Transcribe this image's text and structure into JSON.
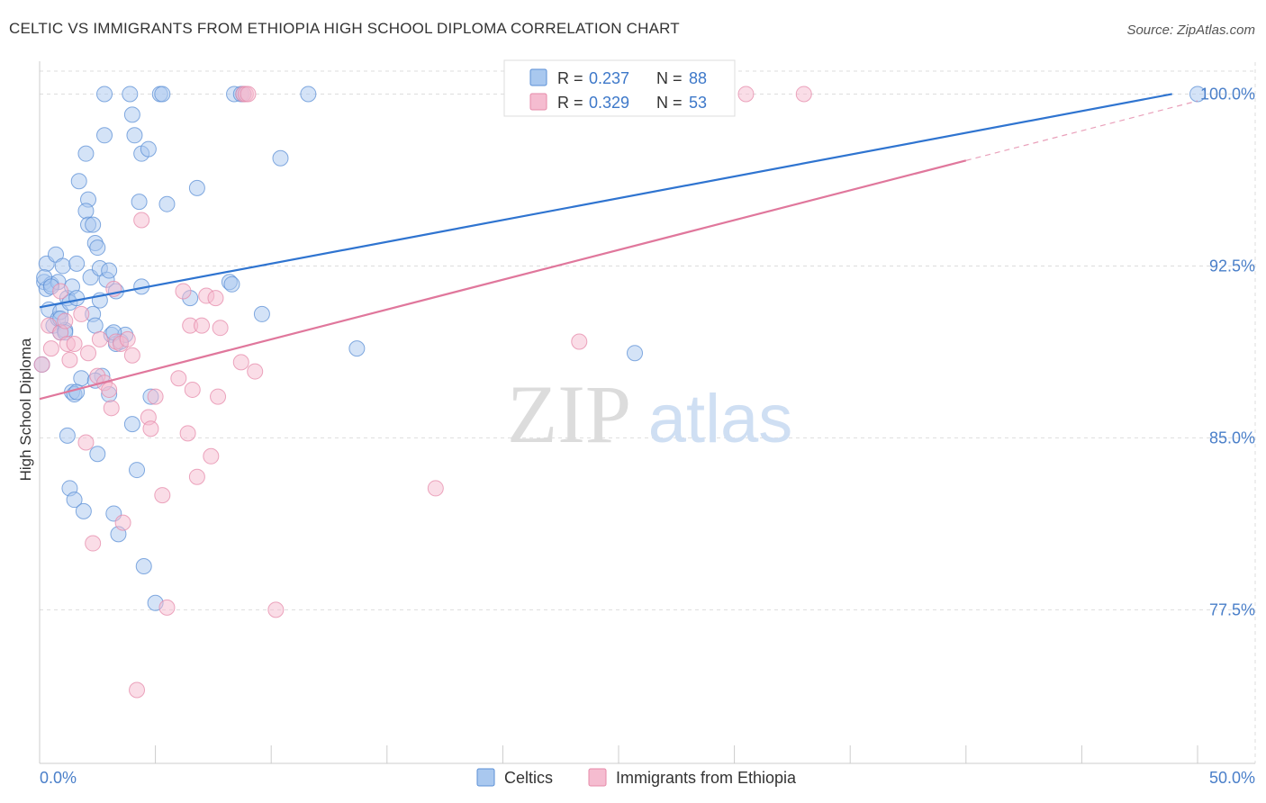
{
  "header": {
    "title": "CELTIC VS IMMIGRANTS FROM ETHIOPIA HIGH SCHOOL DIPLOMA CORRELATION CHART",
    "source": "Source: ZipAtlas.com"
  },
  "watermark": {
    "zip": "ZIP",
    "atlas": "atlas"
  },
  "colors": {
    "blue_fill": "#a9c8ef",
    "blue_stroke": "#5b8fd6",
    "blue_line": "#2f74d0",
    "pink_fill": "#f5bcd0",
    "pink_stroke": "#e68aa9",
    "pink_line": "#e0779c",
    "axis_label": "#4a7fc9",
    "grid": "#dddddd"
  },
  "chart_data": {
    "type": "scatter",
    "title": "CELTIC VS IMMIGRANTS FROM ETHIOPIA HIGH SCHOOL DIPLOMA CORRELATION CHART",
    "xlabel": "",
    "ylabel": "High School Diploma",
    "xlim": [
      0,
      50
    ],
    "ylim": [
      70.8,
      101.0
    ],
    "x_tick_labels": [
      {
        "value": 0,
        "label": "0.0%"
      },
      {
        "value": 50,
        "label": "50.0%"
      }
    ],
    "x_minor_ticks": [
      0,
      5,
      10,
      15,
      20,
      25,
      30,
      35,
      40,
      45,
      50
    ],
    "y_ticks": [
      {
        "value": 77.5,
        "label": "77.5%"
      },
      {
        "value": 85.0,
        "label": "85.0%"
      },
      {
        "value": 92.5,
        "label": "92.5%"
      },
      {
        "value": 100.0,
        "label": "100.0%"
      }
    ],
    "legend": [
      {
        "name": "Celtics",
        "r_label": "R =",
        "r_value": "0.237",
        "n_label": "N =",
        "n_value": "88"
      },
      {
        "name": "Immigrants from Ethiopia",
        "r_label": "R =",
        "r_value": "0.329",
        "n_label": "N =",
        "n_value": "53"
      }
    ],
    "series": [
      {
        "name": "Celtics",
        "trend": {
          "x0": 0,
          "y0": 90.7,
          "x1": 48.9,
          "y1": 100.0
        },
        "points": [
          [
            0.1,
            88.2
          ],
          [
            0.2,
            91.8
          ],
          [
            0.3,
            92.6
          ],
          [
            0.3,
            91.5
          ],
          [
            0.4,
            90.6
          ],
          [
            0.5,
            91.7
          ],
          [
            0.6,
            89.9
          ],
          [
            0.7,
            93.0
          ],
          [
            0.8,
            91.8
          ],
          [
            0.8,
            90.2
          ],
          [
            0.9,
            90.5
          ],
          [
            0.9,
            89.6
          ],
          [
            1.0,
            92.5
          ],
          [
            1.1,
            89.7
          ],
          [
            1.2,
            91.1
          ],
          [
            1.3,
            90.9
          ],
          [
            1.4,
            91.6
          ],
          [
            1.2,
            85.1
          ],
          [
            1.3,
            82.8
          ],
          [
            1.4,
            87.0
          ],
          [
            1.5,
            86.9
          ],
          [
            1.6,
            91.1
          ],
          [
            1.6,
            92.6
          ],
          [
            1.5,
            82.3
          ],
          [
            1.7,
            96.2
          ],
          [
            1.8,
            87.6
          ],
          [
            1.9,
            81.8
          ],
          [
            2.0,
            97.4
          ],
          [
            2.1,
            95.4
          ],
          [
            2.0,
            94.9
          ],
          [
            2.1,
            94.3
          ],
          [
            2.2,
            92.0
          ],
          [
            2.3,
            94.3
          ],
          [
            2.3,
            90.4
          ],
          [
            2.4,
            89.9
          ],
          [
            2.4,
            93.5
          ],
          [
            2.5,
            93.3
          ],
          [
            2.6,
            92.4
          ],
          [
            2.6,
            91.0
          ],
          [
            2.5,
            84.3
          ],
          [
            2.7,
            87.7
          ],
          [
            2.8,
            98.2
          ],
          [
            2.9,
            91.9
          ],
          [
            3.0,
            92.3
          ],
          [
            3.1,
            89.5
          ],
          [
            3.2,
            81.7
          ],
          [
            3.3,
            91.4
          ],
          [
            3.3,
            89.1
          ],
          [
            3.0,
            86.9
          ],
          [
            3.4,
            80.8
          ],
          [
            3.5,
            89.2
          ],
          [
            2.8,
            100.0
          ],
          [
            3.7,
            89.5
          ],
          [
            3.9,
            100.0
          ],
          [
            4.0,
            99.1
          ],
          [
            4.0,
            85.6
          ],
          [
            4.1,
            98.2
          ],
          [
            4.2,
            83.6
          ],
          [
            4.3,
            95.3
          ],
          [
            4.4,
            91.6
          ],
          [
            4.4,
            97.4
          ],
          [
            4.5,
            79.4
          ],
          [
            4.7,
            97.6
          ],
          [
            4.8,
            86.8
          ],
          [
            5.0,
            77.8
          ],
          [
            5.2,
            100.0
          ],
          [
            5.3,
            100.0
          ],
          [
            5.5,
            95.2
          ],
          [
            6.5,
            91.1
          ],
          [
            6.8,
            95.9
          ],
          [
            8.2,
            91.8
          ],
          [
            8.3,
            91.7
          ],
          [
            8.4,
            100.0
          ],
          [
            8.7,
            100.0
          ],
          [
            8.8,
            100.0
          ],
          [
            9.6,
            90.4
          ],
          [
            10.4,
            97.2
          ],
          [
            11.6,
            100.0
          ],
          [
            13.7,
            88.9
          ],
          [
            25.7,
            88.7
          ],
          [
            50.0,
            100.0
          ],
          [
            0.2,
            92.0
          ],
          [
            0.5,
            91.6
          ],
          [
            0.9,
            90.2
          ],
          [
            1.1,
            89.6
          ],
          [
            1.6,
            87.0
          ],
          [
            2.4,
            87.5
          ],
          [
            3.2,
            89.6
          ]
        ]
      },
      {
        "name": "Immigrants from Ethiopia",
        "trend": {
          "x0": 0,
          "y0": 86.7,
          "x1": 40.0,
          "y1": 97.1,
          "dash_to_x": 50.0,
          "dash_to_y": 99.7
        },
        "points": [
          [
            0.1,
            88.2
          ],
          [
            0.4,
            89.9
          ],
          [
            0.5,
            88.9
          ],
          [
            0.9,
            89.6
          ],
          [
            1.1,
            90.1
          ],
          [
            1.2,
            89.1
          ],
          [
            1.3,
            88.4
          ],
          [
            1.5,
            89.1
          ],
          [
            1.8,
            90.4
          ],
          [
            2.0,
            84.8
          ],
          [
            2.1,
            88.7
          ],
          [
            2.3,
            80.4
          ],
          [
            2.5,
            87.7
          ],
          [
            2.8,
            87.4
          ],
          [
            3.0,
            87.1
          ],
          [
            3.1,
            86.3
          ],
          [
            3.2,
            91.5
          ],
          [
            3.3,
            89.2
          ],
          [
            3.5,
            89.1
          ],
          [
            3.6,
            81.3
          ],
          [
            3.8,
            89.3
          ],
          [
            4.0,
            88.6
          ],
          [
            4.2,
            74.0
          ],
          [
            4.4,
            94.5
          ],
          [
            4.7,
            85.9
          ],
          [
            4.8,
            85.4
          ],
          [
            5.0,
            86.8
          ],
          [
            5.3,
            82.5
          ],
          [
            5.5,
            77.6
          ],
          [
            6.0,
            87.6
          ],
          [
            6.2,
            91.4
          ],
          [
            6.4,
            85.2
          ],
          [
            6.5,
            89.9
          ],
          [
            6.6,
            87.1
          ],
          [
            6.8,
            83.3
          ],
          [
            7.0,
            89.9
          ],
          [
            7.2,
            91.2
          ],
          [
            7.4,
            84.2
          ],
          [
            7.6,
            91.1
          ],
          [
            7.7,
            86.8
          ],
          [
            7.8,
            89.8
          ],
          [
            8.7,
            88.3
          ],
          [
            8.8,
            100.0
          ],
          [
            8.9,
            100.0
          ],
          [
            9.0,
            100.0
          ],
          [
            9.3,
            87.9
          ],
          [
            10.2,
            77.5
          ],
          [
            17.1,
            82.8
          ],
          [
            23.3,
            89.2
          ],
          [
            30.5,
            100.0
          ],
          [
            33.0,
            100.0
          ],
          [
            0.9,
            91.4
          ],
          [
            2.6,
            89.3
          ]
        ]
      }
    ]
  }
}
